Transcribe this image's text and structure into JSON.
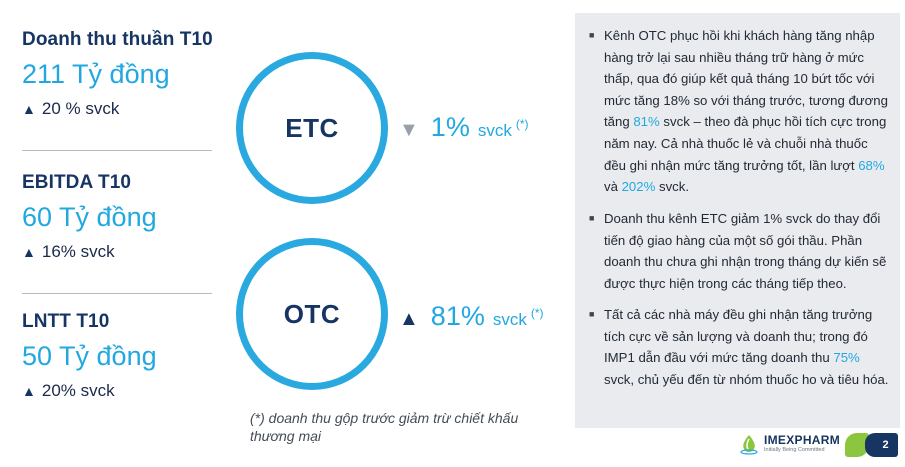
{
  "kpis": [
    {
      "title": "Doanh thu thuần T10",
      "value": "211 Tỷ đồng",
      "change": "20 % svck",
      "direction": "up"
    },
    {
      "title": "EBITDA T10",
      "value": "60 Tỷ đồng",
      "change": "16% svck",
      "direction": "up"
    },
    {
      "title": "LNTT T10",
      "value": "50 Tỷ đồng",
      "change": "20% svck",
      "direction": "up"
    }
  ],
  "channels": [
    {
      "name": "ETC",
      "growth": "1%",
      "unit": "svck",
      "note": "(*)",
      "direction": "down"
    },
    {
      "name": "OTC",
      "growth": "81%",
      "unit": "svck",
      "note": "(*)",
      "direction": "up"
    }
  ],
  "footnote": "(*) doanh thu gộp trước giảm trừ chiết khấu thương mại",
  "bullets": [
    {
      "segments": [
        {
          "t": "Kênh OTC phục hồi khi khách hàng tăng nhập hàng trở lại sau nhiều tháng trữ hàng ở mức thấp, qua đó giúp kết quả tháng 10 bứt tốc với mức tăng 18% so với tháng trước, tương đương tăng ",
          "h": false
        },
        {
          "t": "81%",
          "h": true
        },
        {
          "t": " svck – theo đà phục hồi tích cực trong năm nay. Cả nhà thuốc lẻ và chuỗi nhà thuốc đều ghi nhận mức tăng trưởng tốt, lần lượt ",
          "h": false
        },
        {
          "t": "68%",
          "h": true
        },
        {
          "t": " và ",
          "h": false
        },
        {
          "t": "202%",
          "h": true
        },
        {
          "t": " svck.",
          "h": false
        }
      ]
    },
    {
      "segments": [
        {
          "t": "Doanh thu kênh ETC giảm 1% svck do thay đổi tiến độ giao hàng của một số gói thầu. Phần doanh thu chưa ghi nhận trong tháng dự kiến sẽ được thực hiện trong các tháng tiếp theo.",
          "h": false
        }
      ]
    },
    {
      "segments": [
        {
          "t": "Tất cả các nhà máy đều ghi nhận tăng trưởng tích cực về sản lượng và doanh thu; trong đó IMP1 dẫn đầu với mức tăng doanh thu ",
          "h": false
        },
        {
          "t": "75%",
          "h": true
        },
        {
          "t": " svck, chủ yếu đến từ nhóm thuốc ho và tiêu hóa.",
          "h": false
        }
      ]
    }
  ],
  "logo": {
    "name": "IMEXPHARM",
    "tagline": "Initially Being Committed"
  },
  "page_number": "2",
  "icons": {
    "up": "triangle-up",
    "down": "triangle-down",
    "bullet": "square-bullet",
    "logo": "leaf-drop-icon"
  },
  "colors": {
    "accent": "#22a8e0",
    "navy": "#173563",
    "panel": "#e9ebee",
    "green": "#8cc63e"
  }
}
